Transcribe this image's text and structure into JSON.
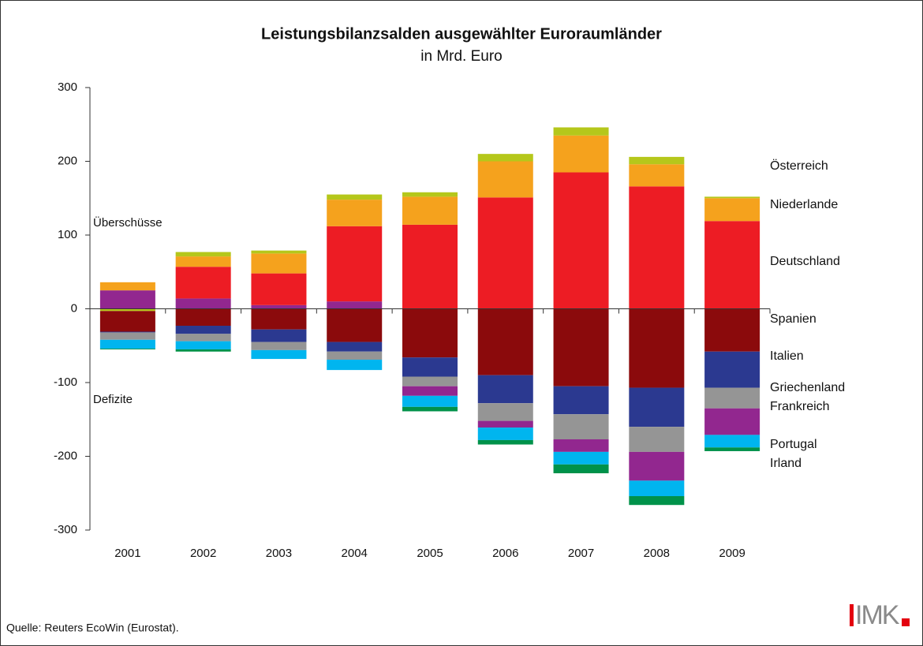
{
  "chart_data": {
    "type": "stacked_bar",
    "title": "Leistungsbilanzsalden ausgewählter Euroraumländer",
    "subtitle": "in Mrd. Euro",
    "annotations": [
      "Überschüsse",
      "Defizite"
    ],
    "source": "Quelle: Reuters EcoWin (Eurostat).",
    "logo": "IMK",
    "categories": [
      "2001",
      "2002",
      "2003",
      "2004",
      "2005",
      "2006",
      "2007",
      "2008",
      "2009"
    ],
    "ylim": [
      -300,
      300
    ],
    "yticks": [
      300,
      200,
      100,
      0,
      -100,
      -200,
      -300
    ],
    "legend": "right",
    "series": [
      {
        "name": "Österreich",
        "color": "#b5c71b",
        "values": [
          -3,
          6,
          4,
          7,
          6,
          10,
          11,
          10,
          2
        ]
      },
      {
        "name": "Niederlande",
        "color": "#f5a21d",
        "values": [
          11,
          14,
          27,
          36,
          38,
          49,
          50,
          30,
          31
        ]
      },
      {
        "name": "Deutschland",
        "color": "#ed1c24",
        "values": [
          0,
          43,
          43,
          102,
          114,
          151,
          185,
          166,
          119
        ]
      },
      {
        "name": "Spanien",
        "color": "#8b0a0c",
        "values": [
          -28,
          -23,
          -28,
          -45,
          -66,
          -90,
          -105,
          -107,
          -58
        ]
      },
      {
        "name": "Italien",
        "color": "#2b3990",
        "values": [
          -1,
          -11,
          -17,
          -13,
          -26,
          -38,
          -38,
          -53,
          -49
        ]
      },
      {
        "name": "Griechenland",
        "color": "#959595",
        "values": [
          -10,
          -10,
          -11,
          -11,
          -13,
          -24,
          -34,
          -34,
          -28
        ]
      },
      {
        "name": "Frankreich",
        "color": "#92278f",
        "values": [
          25,
          14,
          5,
          10,
          -13,
          -9,
          -17,
          -39,
          -36
        ]
      },
      {
        "name": "Portugal",
        "color": "#00b5ef",
        "values": [
          -12,
          -11,
          -12,
          -14,
          -15,
          -17,
          -17,
          -21,
          -17
        ]
      },
      {
        "name": "Irland",
        "color": "#00924a",
        "values": [
          -1,
          -3,
          0,
          0,
          -6,
          -6,
          -12,
          -12,
          -5
        ]
      }
    ]
  }
}
